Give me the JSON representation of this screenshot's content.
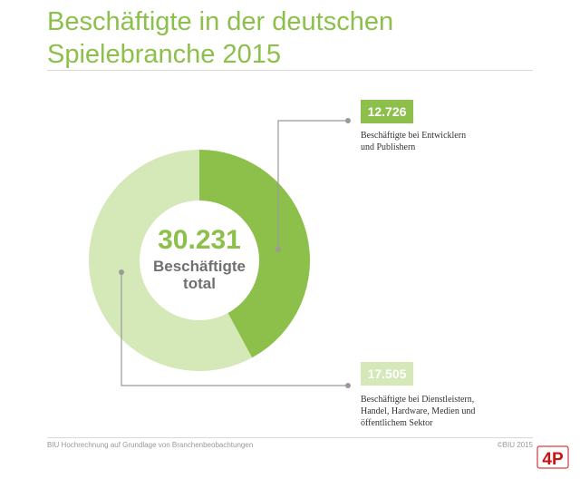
{
  "header": {
    "title_line1": "Beschäftigte in der deutschen",
    "title_line2": "Spielebranche 2015"
  },
  "chart_data": {
    "type": "donut",
    "title": "Beschäftigte in der deutschen Spielebranche 2015",
    "total": {
      "value": 30231,
      "value_label": "30.231",
      "label_line1": "Beschäftigte",
      "label_line2": "total"
    },
    "slices": [
      {
        "value": 12726,
        "value_label": "12.726",
        "label": "Beschäftigte bei Entwicklern und Publishern",
        "label_line1": "Beschäftigte bei Entwicklern",
        "label_line2": "und Publishern",
        "color": "#8cc04b"
      },
      {
        "value": 17505,
        "value_label": "17.505",
        "label": "Beschäftigte bei Dienstleistern, Handel, Hardware, Medien und öffentlichem Sektor",
        "label_line1": "Beschäftigte bei Dienstleistern,",
        "label_line2": "Handel, Hardware, Medien und",
        "label_line3": "öffentlichem Sektor",
        "color": "#d5e8b8"
      }
    ]
  },
  "footer": {
    "source": "BIU Hochrechnung auf Grundlage von Branchenbeobachtungen",
    "copyright": "©BIU 2015"
  },
  "logo": {
    "text": "4P",
    "color": "#cc1111"
  }
}
